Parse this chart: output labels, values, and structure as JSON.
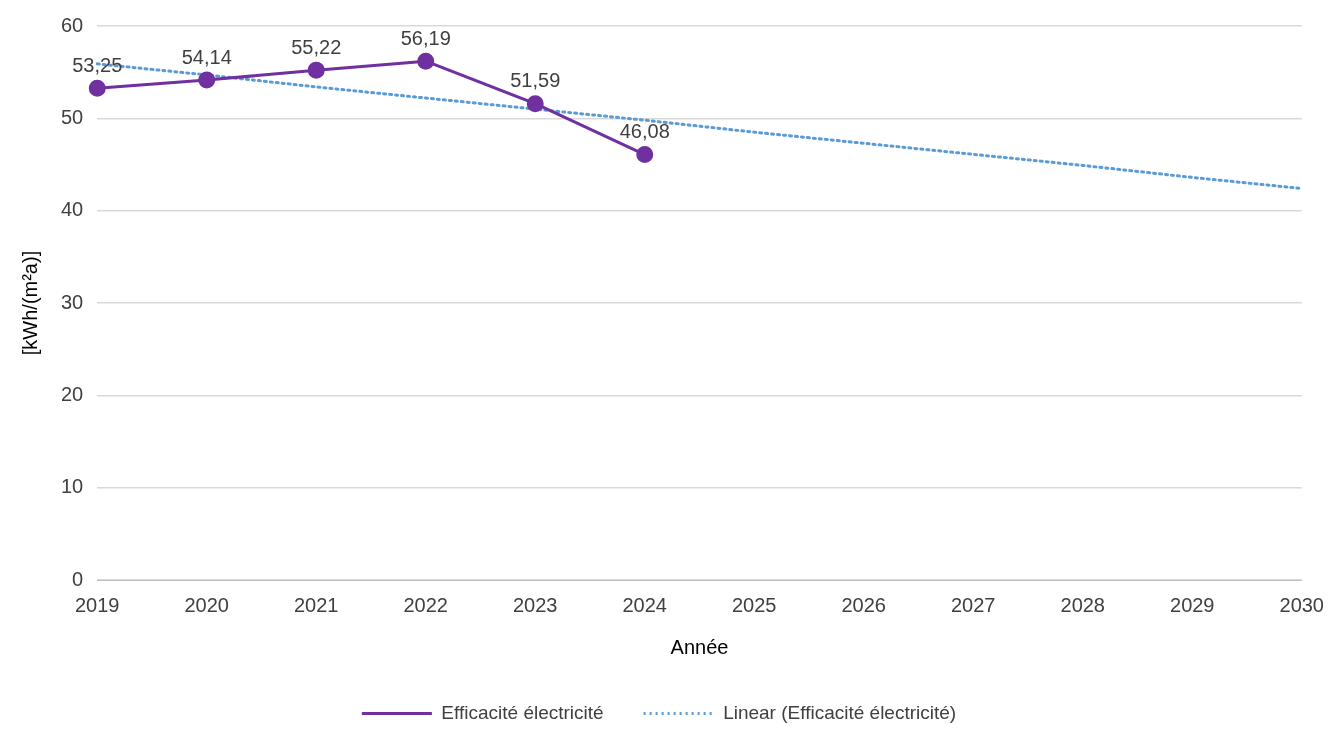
{
  "chart_data": {
    "type": "line",
    "xlabel": "Année",
    "ylabel": "[kWh/(m²a)]",
    "categories": [
      "2019",
      "2020",
      "2021",
      "2022",
      "2023",
      "2024",
      "2025",
      "2026",
      "2027",
      "2028",
      "2029",
      "2030"
    ],
    "series": [
      {
        "name": "Efficacité électricité",
        "color": "#7030a0",
        "marker": "circle",
        "line_style": "solid",
        "values": [
          53.25,
          54.14,
          55.22,
          56.19,
          51.59,
          46.08,
          null,
          null,
          null,
          null,
          null,
          null
        ],
        "value_labels": [
          "53,25",
          "54,14",
          "55,22",
          "56,19",
          "51,59",
          "46,08",
          null,
          null,
          null,
          null,
          null,
          null
        ]
      },
      {
        "name": "Linear (Efficacité électricité)",
        "type": "line",
        "color": "#5b9bd5",
        "marker": "none",
        "line_style": "dotted",
        "values": [
          55.9,
          54.7,
          53.4,
          52.2,
          51.0,
          49.8,
          48.5,
          47.3,
          46.1,
          44.9,
          43.6,
          42.4
        ]
      }
    ],
    "ylim": [
      0,
      60
    ],
    "yticks": [
      0,
      10,
      20,
      30,
      40,
      50,
      60
    ],
    "grid": "y",
    "legend": "bottom"
  }
}
